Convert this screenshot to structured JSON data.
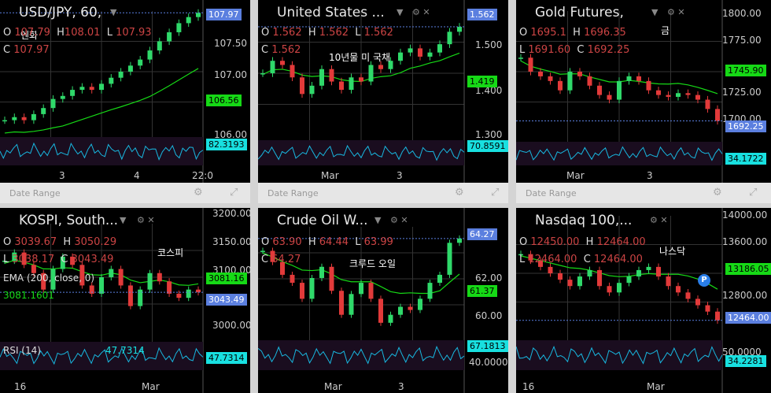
{
  "panels": [
    {
      "id": "usdjpy",
      "title": "USD/JPY, 60,",
      "annotation": "엔화",
      "ohlc": [
        {
          "k": "O",
          "v": "107.79"
        },
        {
          "k": "H",
          "v": "108.01"
        },
        {
          "k": "L",
          "v": "107.93"
        },
        {
          "k": "C",
          "v": "107.97"
        }
      ],
      "price_labels": [
        "107.50",
        "107.00",
        "106.00"
      ],
      "last_price": "107.97",
      "ma_value": "106.56",
      "rsi_value": "82.3193",
      "x_labels": [
        "3",
        "4",
        "22:0"
      ],
      "colors": {
        "last": "#5b7fdf",
        "ma": "#16d916",
        "rsi": "#18e0e0"
      }
    },
    {
      "id": "us10y",
      "title": "United States ...",
      "annotation": "10년물 미 국채",
      "ohlc": [
        {
          "k": "O",
          "v": "1.562"
        },
        {
          "k": "H",
          "v": "1.562"
        },
        {
          "k": "L",
          "v": "1.562"
        },
        {
          "k": "C",
          "v": "1.562"
        }
      ],
      "price_labels": [
        "1.500",
        "1.400",
        "1.300"
      ],
      "last_price": "1.562",
      "ma_value": "1.419",
      "rsi_value": "70.8591",
      "x_labels": [
        "Mar",
        "3"
      ],
      "colors": {
        "last": "#5b7fdf",
        "ma": "#16d916",
        "rsi": "#18e0e0"
      }
    },
    {
      "id": "gold",
      "title": "Gold Futures,",
      "annotation": "금",
      "ohlc": [
        {
          "k": "O",
          "v": "1695.1"
        },
        {
          "k": "H",
          "v": "1696.35"
        },
        {
          "k": "L",
          "v": "1691.60"
        },
        {
          "k": "C",
          "v": "1692.25"
        }
      ],
      "price_labels": [
        "1800.00",
        "1775.00",
        "1725.00",
        "1700.00"
      ],
      "last_price": "1692.25",
      "ma_value": "1745.90",
      "rsi_value": "34.1722",
      "x_labels": [
        "Mar",
        "3"
      ],
      "colors": {
        "last": "#5b7fdf",
        "ma": "#16d916",
        "rsi": "#18e0e0"
      }
    },
    {
      "id": "kospi",
      "title": "KOSPI, South...",
      "annotation": "코스피",
      "ohlc": [
        {
          "k": "O",
          "v": "3039.67"
        },
        {
          "k": "H",
          "v": "3050.29"
        },
        {
          "k": "L",
          "v": "3038.17"
        },
        {
          "k": "C",
          "v": "3043.49"
        }
      ],
      "ema_label": "EMA (200, close, 0)",
      "ema_value": "3081.1601",
      "rsi_label": "RSI (14)",
      "rsi_legend_value": "47.7314",
      "price_labels": [
        "3200.00",
        "3150.00",
        "3100.00",
        "3000.00"
      ],
      "last_price": "3043.49",
      "ma_value": "3081.16",
      "rsi_value": "47.7314",
      "x_labels": [
        "16",
        "Mar"
      ],
      "colors": {
        "last": "#5b7fdf",
        "ma": "#16d916",
        "rsi": "#18e0e0"
      }
    },
    {
      "id": "crude",
      "title": "Crude Oil W...",
      "annotation": "크루드 오일",
      "ohlc": [
        {
          "k": "O",
          "v": "63.90"
        },
        {
          "k": "H",
          "v": "64.44"
        },
        {
          "k": "L",
          "v": "63.99"
        },
        {
          "k": "C",
          "v": "64.27"
        }
      ],
      "price_labels": [
        "62.00",
        "60.00",
        "40.0000"
      ],
      "last_price": "64.27",
      "ma_value": "61.37",
      "rsi_value": "67.1813",
      "x_labels": [
        "Mar",
        "3"
      ],
      "colors": {
        "last": "#5b7fdf",
        "ma": "#16d916",
        "rsi": "#18e0e0"
      }
    },
    {
      "id": "nasdaq",
      "title": "Nasdaq 100,...",
      "annotation": "나스닥",
      "ohlc": [
        {
          "k": "O",
          "v": "12450.00"
        },
        {
          "k": "H",
          "v": "12464.00"
        },
        {
          "k": "L",
          "v": "12464.00"
        },
        {
          "k": "C",
          "v": "12464.00"
        }
      ],
      "price_labels": [
        "14000.00",
        "13600.00",
        "12800.00",
        "50.0000"
      ],
      "last_price": "12464.00",
      "ma_value": "13186.05",
      "rsi_value": "34.2281",
      "x_labels": [
        "16",
        "Mar"
      ],
      "colors": {
        "last": "#5b7fdf",
        "ma": "#16d916",
        "rsi": "#18e0e0"
      }
    }
  ],
  "footer_label": "Date Range",
  "chart_data": [
    {
      "type": "line",
      "title": "USD/JPY, 60,",
      "series": [
        {
          "name": "",
          "values": [
            106.2,
            106.25,
            106.2,
            106.3,
            106.4,
            106.55,
            106.6,
            106.7,
            106.75,
            106.7,
            106.8,
            106.9,
            107.0,
            107.1,
            107.2,
            107.35,
            107.5,
            107.65,
            107.8,
            107.9,
            107.97
          ]
        }
      ],
      "ylim": [
        106.0,
        108.0
      ]
    },
    {
      "type": "line",
      "title": "United States ...",
      "series": [
        {
          "name": "",
          "values": [
            1.45,
            1.48,
            1.47,
            1.44,
            1.4,
            1.42,
            1.46,
            1.43,
            1.41,
            1.44,
            1.43,
            1.47,
            1.46,
            1.48,
            1.5,
            1.51,
            1.49,
            1.5,
            1.52,
            1.55,
            1.562
          ]
        }
      ],
      "ylim": [
        1.3,
        1.6
      ]
    },
    {
      "type": "line",
      "title": "Gold Futures,",
      "series": [
        {
          "name": "",
          "values": [
            1760,
            1745,
            1740,
            1735,
            1725,
            1745,
            1740,
            1730,
            1720,
            1715,
            1735,
            1740,
            1735,
            1725,
            1720,
            1718,
            1722,
            1720,
            1715,
            1705,
            1692.25
          ]
        }
      ],
      "ylim": [
        1680,
        1810
      ]
    },
    {
      "type": "line",
      "title": "KOSPI, South...",
      "series": [
        {
          "name": "",
          "values": [
            3120,
            3140,
            3110,
            3090,
            3050,
            3100,
            3130,
            3110,
            3060,
            3040,
            3080,
            3100,
            3060,
            3010,
            3050,
            3090,
            3070,
            3040,
            3030,
            3050,
            3043.49
          ]
        }
      ],
      "ylim": [
        2950,
        3210
      ]
    },
    {
      "type": "line",
      "title": "Crude Oil W...",
      "series": [
        {
          "name": "",
          "values": [
            63.5,
            62.8,
            62.0,
            61.5,
            60.5,
            61.8,
            62.5,
            61.0,
            59.5,
            60.8,
            61.5,
            60.5,
            59.0,
            59.5,
            60.0,
            59.8,
            60.5,
            61.5,
            62.0,
            64.0,
            64.27
          ]
        }
      ],
      "ylim": [
        58.5,
        65.0
      ]
    },
    {
      "type": "line",
      "title": "Nasdaq 100,...",
      "series": [
        {
          "name": "",
          "values": [
            13500,
            13400,
            13300,
            13200,
            13100,
            13000,
            13150,
            13250,
            13000,
            12900,
            13050,
            13150,
            13250,
            13300,
            13150,
            13000,
            12900,
            12800,
            12700,
            12600,
            12464
          ]
        }
      ],
      "ylim": [
        12300,
        14100
      ]
    }
  ]
}
